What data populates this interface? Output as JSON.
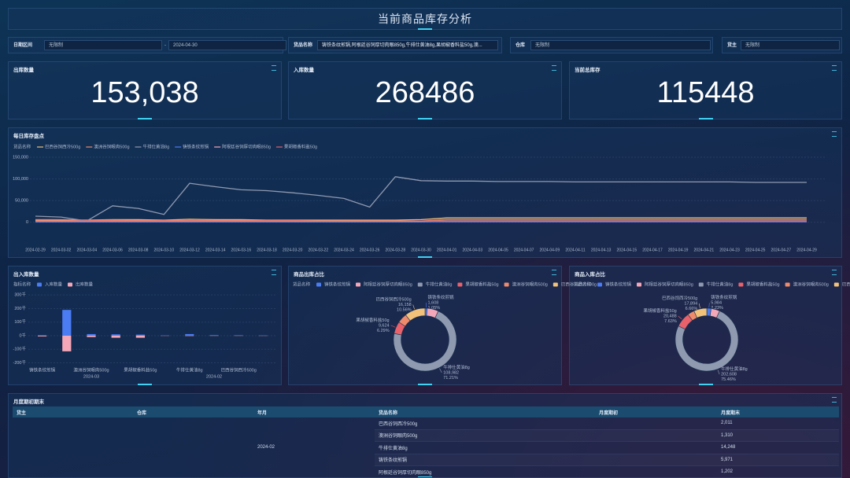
{
  "header": {
    "title": "当前商品库存分析"
  },
  "filters": [
    {
      "label": "日期区间",
      "start": "无限制",
      "separator": "-",
      "end": "2024-04-30"
    },
    {
      "label": "货品名称",
      "value": "铸铁条纹煎锅,阿根廷谷饲厚切肉眼850g,牛排仕黄油8g,果胡椒香料盐50g,澳..."
    },
    {
      "label": "仓库",
      "value": "无限制"
    },
    {
      "label": "货主",
      "value": "无限制"
    }
  ],
  "kpis": [
    {
      "label": "出库数量",
      "value": "153,038"
    },
    {
      "label": "入库数量",
      "value": "268486"
    },
    {
      "label": "当前总库存",
      "value": "115448"
    }
  ],
  "chart_data": [
    {
      "type": "line",
      "title": "每日库存盘点",
      "legend_title": "货品名称",
      "grid": true,
      "categories": [
        "2024-02-29",
        "2024-03-02",
        "2024-03-04",
        "2024-03-06",
        "2024-03-08",
        "2024-03-10",
        "2024-03-12",
        "2024-03-14",
        "2024-03-16",
        "2024-03-18",
        "2024-03-20",
        "2024-03-22",
        "2024-03-24",
        "2024-03-26",
        "2024-03-28",
        "2024-03-30",
        "2024-04-01",
        "2024-04-03",
        "2024-04-05",
        "2024-04-07",
        "2024-04-09",
        "2024-04-11",
        "2024-04-13",
        "2024-04-15",
        "2024-04-17",
        "2024-04-19",
        "2024-04-21",
        "2024-04-23",
        "2024-04-25",
        "2024-04-27",
        "2024-04-29"
      ],
      "series": [
        {
          "name": "巴西谷饲西冷500g",
          "color": "#f2c27a",
          "values": [
            4000,
            4000,
            5000,
            6000,
            6000,
            5000,
            7000,
            6000,
            6000,
            5000,
            5000,
            5000,
            5000,
            5000,
            5000,
            6000,
            10000,
            10000,
            10000,
            10000,
            10000,
            10000,
            10000,
            10000,
            10000,
            10000,
            10000,
            10000,
            10000,
            10000,
            10000
          ]
        },
        {
          "name": "澳洲谷饲眼肉500g",
          "color": "#ef8a6b",
          "values": [
            6000,
            6000,
            5000,
            5000,
            4000,
            4000,
            4000,
            4000,
            4000,
            4000,
            4000,
            3000,
            3000,
            3000,
            3000,
            3000,
            6000,
            6000,
            6000,
            6000,
            6000,
            6000,
            6000,
            6000,
            6000,
            6000,
            6000,
            6000,
            6000,
            6000,
            6000
          ]
        },
        {
          "name": "牛排仕黄油8g",
          "color": "#8f9ab0",
          "values": [
            14000,
            12000,
            3000,
            38000,
            32000,
            18000,
            90000,
            82000,
            75000,
            73000,
            68000,
            62000,
            55000,
            35000,
            105000,
            96000,
            95000,
            95000,
            94000,
            94000,
            94000,
            93000,
            93000,
            93000,
            93000,
            93000,
            93000,
            93000,
            92000,
            92000,
            92000
          ]
        },
        {
          "name": "铸铁条纹煎锅",
          "color": "#4b7cf3",
          "values": [
            1000,
            1000,
            1000,
            1000,
            1000,
            1000,
            1000,
            1000,
            1000,
            1000,
            1000,
            1000,
            1000,
            1000,
            1000,
            1000,
            1000,
            1000,
            1000,
            1000,
            1000,
            1000,
            1000,
            1000,
            1000,
            1000,
            1000,
            1000,
            1000,
            1000,
            1000
          ]
        },
        {
          "name": "阿根廷谷饲厚切肉眼850g",
          "color": "#f4a7b9",
          "values": [
            2000,
            2000,
            2000,
            2000,
            2000,
            2000,
            2000,
            2000,
            2000,
            2000,
            2000,
            2000,
            2000,
            2000,
            2000,
            2000,
            3000,
            3000,
            3000,
            3000,
            3000,
            3000,
            3000,
            3000,
            3000,
            3000,
            3000,
            3000,
            3000,
            3000,
            3000
          ]
        },
        {
          "name": "果胡椒香料盐50g",
          "color": "#e8616b",
          "values": [
            3000,
            3000,
            3000,
            3000,
            3000,
            3000,
            3000,
            3000,
            3000,
            3000,
            3000,
            3000,
            3000,
            3000,
            3000,
            3000,
            2000,
            2000,
            2000,
            2000,
            2000,
            2000,
            2000,
            2000,
            2000,
            2000,
            2000,
            2000,
            2000,
            2000,
            2000
          ]
        }
      ],
      "ylim": [
        -15000,
        150000
      ],
      "yticks": [
        0,
        {
          "value": 50000,
          "label": "50,000"
        },
        {
          "value": 100000,
          "label": "100,000"
        },
        {
          "value": 150000,
          "label": "150,000"
        }
      ]
    },
    {
      "type": "bar",
      "title": "出入库数量",
      "legend_title": "指标名称",
      "grid": true,
      "categories": [
        "铸铁条纹煎锅",
        null,
        "澳洲谷饲眼肉500g",
        null,
        "果胡椒香料盐50g",
        null,
        "牛排仕黄油8g",
        null,
        "巴西谷饲西冷500g",
        null
      ],
      "group_labels": [
        "2024-03",
        "2024-02"
      ],
      "series": [
        {
          "name": "入库数量",
          "color": "#4b7cf3",
          "values": [
            3,
            190,
            12,
            10,
            8,
            2,
            12,
            4,
            3,
            2
          ]
        },
        {
          "name": "出库数量",
          "color": "#f4a7b9",
          "values": [
            -5,
            -115,
            -10,
            -15,
            -15,
            -1,
            -2,
            -1,
            -1,
            -1
          ]
        }
      ],
      "ylim": [
        -220,
        330
      ],
      "yticks": [
        {
          "value": 300,
          "label": "300千"
        },
        {
          "value": 200,
          "label": "200千"
        },
        {
          "value": 100,
          "label": "100千"
        },
        {
          "value": 0,
          "label": "0千"
        },
        {
          "value": -100,
          "label": "-100千"
        },
        {
          "value": -200,
          "label": "-200千"
        }
      ]
    },
    {
      "type": "pie",
      "title": "商品出库占比",
      "legend_title": "货品名称",
      "categories": [
        "铸铁条纹煎锅",
        "阿根廷谷饲厚切肉眼850g",
        "牛排仕黄油8g",
        "果胡椒香料盐50g",
        "澳洲谷饲眼肉500g",
        "巴西谷饲西冷500g"
      ],
      "colors": [
        "#4b7cf3",
        "#f4a7b9",
        "#8f9ab0",
        "#e8616b",
        "#ef8a6b",
        "#f2c27a"
      ],
      "values": [
        1608,
        9000,
        108982,
        9624,
        7666,
        16158
      ],
      "value_labels": [
        "1,608",
        null,
        "108,982",
        "9,624",
        null,
        "16,158"
      ],
      "percent_labels": [
        "1.05%",
        null,
        "71.21%",
        "6.29%",
        null,
        "10.56%"
      ]
    },
    {
      "type": "pie",
      "title": "商品入库占比",
      "legend_title": "货品名称",
      "categories": [
        "铸铁条纹煎锅",
        "阿根廷谷饲厚切肉眼850g",
        "牛排仕黄油8g",
        "果胡椒香料盐50g",
        "澳洲谷饲眼肉500g",
        "巴西谷饲西冷500g"
      ],
      "colors": [
        "#4b7cf3",
        "#f4a7b9",
        "#8f9ab0",
        "#e8616b",
        "#ef8a6b",
        "#f2c27a"
      ],
      "values": [
        5984,
        12000,
        202608,
        20488,
        9512,
        17894
      ],
      "value_labels": [
        "5,984",
        null,
        "202,608",
        "20,488",
        null,
        "17,894"
      ],
      "percent_labels": [
        "2.23%",
        null,
        "75.46%",
        "7.63%",
        null,
        "6.66%"
      ]
    }
  ],
  "table": {
    "title": "月度期初期末",
    "columns": [
      "货主",
      "仓库",
      "年月",
      "货品名称",
      "月度期初",
      "月度期末"
    ],
    "month": "2024-02",
    "rows": [
      [
        "巴西谷饲西冷500g",
        "2,011"
      ],
      [
        "澳洲谷饲眼肉500g",
        "1,310"
      ],
      [
        "牛排仕黄油8g",
        "14,248"
      ],
      [
        "铸铁条纹煎锅",
        "5,971"
      ],
      [
        "阿根廷谷饲厚切肉眼850g",
        "1,202"
      ]
    ]
  }
}
